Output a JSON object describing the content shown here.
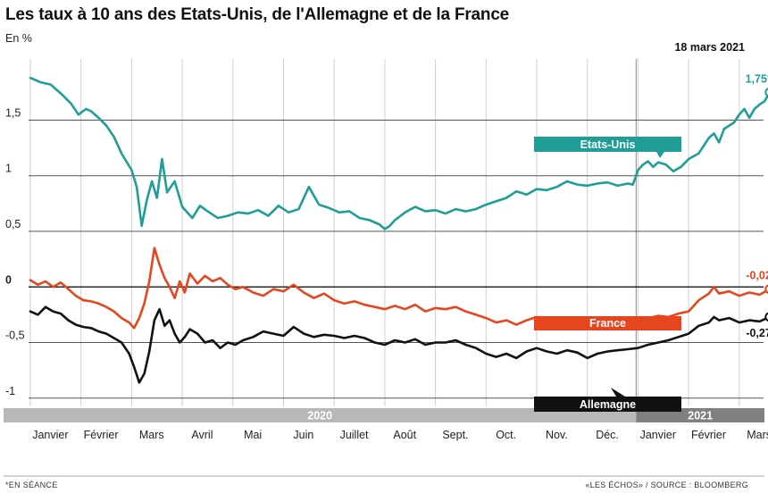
{
  "title": "Les taux à 10 ans des Etats-Unis, de l'Allemagne et de la France",
  "subtitle": "En %",
  "date_label": "18 mars 2021",
  "footer": {
    "left": "*EN SÉANCE",
    "right": "«LES ÉCHOS» / SOURCE : BLOOMBERG"
  },
  "colors": {
    "us": "#1f9e98",
    "france": "#e5461e",
    "germany": "#111111",
    "grid": "#555555",
    "year_bar": "#b8b8b8",
    "year_bar_2021": "#808080"
  },
  "chart_data": {
    "type": "line",
    "ylim": [
      -1.05,
      2.05
    ],
    "y_ticks": [
      {
        "value": 1.5,
        "label": "1,5"
      },
      {
        "value": 1,
        "label": "1"
      },
      {
        "value": 0.5,
        "label": "0,5"
      },
      {
        "value": 0,
        "label": "0"
      },
      {
        "value": -0.5,
        "label": "-0,5"
      },
      {
        "value": -1,
        "label": "-1"
      }
    ],
    "x_labels": [
      "Janvier",
      "Février",
      "Mars",
      "Avril",
      "Mai",
      "Juin",
      "Juillet",
      "Août",
      "Sept.",
      "Oct.",
      "Nov.",
      "Déc.",
      "Janvier",
      "Février",
      "Mars"
    ],
    "years": [
      "2020",
      "2021"
    ],
    "x_range": [
      0,
      14.6
    ],
    "series": [
      {
        "name": "Etats-Unis",
        "end_label": "1,75*",
        "values": [
          [
            0,
            1.88
          ],
          [
            0.2,
            1.84
          ],
          [
            0.4,
            1.82
          ],
          [
            0.6,
            1.74
          ],
          [
            0.8,
            1.65
          ],
          [
            0.95,
            1.55
          ],
          [
            1.1,
            1.6
          ],
          [
            1.2,
            1.58
          ],
          [
            1.35,
            1.52
          ],
          [
            1.5,
            1.45
          ],
          [
            1.65,
            1.35
          ],
          [
            1.8,
            1.2
          ],
          [
            2.0,
            1.05
          ],
          [
            2.1,
            0.9
          ],
          [
            2.2,
            0.55
          ],
          [
            2.3,
            0.78
          ],
          [
            2.4,
            0.95
          ],
          [
            2.5,
            0.8
          ],
          [
            2.6,
            1.15
          ],
          [
            2.7,
            0.85
          ],
          [
            2.85,
            0.95
          ],
          [
            3.0,
            0.72
          ],
          [
            3.2,
            0.62
          ],
          [
            3.35,
            0.73
          ],
          [
            3.5,
            0.68
          ],
          [
            3.7,
            0.62
          ],
          [
            3.9,
            0.64
          ],
          [
            4.1,
            0.67
          ],
          [
            4.3,
            0.66
          ],
          [
            4.5,
            0.69
          ],
          [
            4.7,
            0.64
          ],
          [
            4.9,
            0.73
          ],
          [
            5.1,
            0.67
          ],
          [
            5.3,
            0.7
          ],
          [
            5.5,
            0.9
          ],
          [
            5.7,
            0.74
          ],
          [
            5.9,
            0.71
          ],
          [
            6.1,
            0.67
          ],
          [
            6.3,
            0.68
          ],
          [
            6.5,
            0.62
          ],
          [
            6.7,
            0.6
          ],
          [
            6.9,
            0.56
          ],
          [
            7.0,
            0.52
          ],
          [
            7.1,
            0.55
          ],
          [
            7.2,
            0.6
          ],
          [
            7.4,
            0.67
          ],
          [
            7.6,
            0.72
          ],
          [
            7.8,
            0.68
          ],
          [
            8.0,
            0.69
          ],
          [
            8.2,
            0.66
          ],
          [
            8.4,
            0.7
          ],
          [
            8.6,
            0.68
          ],
          [
            8.8,
            0.7
          ],
          [
            9.0,
            0.74
          ],
          [
            9.2,
            0.77
          ],
          [
            9.4,
            0.8
          ],
          [
            9.6,
            0.86
          ],
          [
            9.8,
            0.83
          ],
          [
            10.0,
            0.88
          ],
          [
            10.2,
            0.87
          ],
          [
            10.4,
            0.9
          ],
          [
            10.6,
            0.95
          ],
          [
            10.8,
            0.92
          ],
          [
            11.0,
            0.91
          ],
          [
            11.2,
            0.93
          ],
          [
            11.4,
            0.94
          ],
          [
            11.6,
            0.91
          ],
          [
            11.8,
            0.93
          ],
          [
            11.9,
            0.92
          ],
          [
            12.0,
            1.05
          ],
          [
            12.1,
            1.1
          ],
          [
            12.2,
            1.13
          ],
          [
            12.3,
            1.08
          ],
          [
            12.4,
            1.12
          ],
          [
            12.55,
            1.1
          ],
          [
            12.7,
            1.04
          ],
          [
            12.85,
            1.08
          ],
          [
            13.0,
            1.15
          ],
          [
            13.2,
            1.2
          ],
          [
            13.4,
            1.34
          ],
          [
            13.5,
            1.38
          ],
          [
            13.6,
            1.3
          ],
          [
            13.7,
            1.42
          ],
          [
            13.8,
            1.45
          ],
          [
            13.9,
            1.48
          ],
          [
            14.0,
            1.55
          ],
          [
            14.1,
            1.6
          ],
          [
            14.2,
            1.52
          ],
          [
            14.3,
            1.6
          ],
          [
            14.4,
            1.64
          ],
          [
            14.5,
            1.67
          ],
          [
            14.6,
            1.75
          ]
        ]
      },
      {
        "name": "France",
        "end_label": "-0,02",
        "values": [
          [
            0,
            0.06
          ],
          [
            0.15,
            0.02
          ],
          [
            0.3,
            0.05
          ],
          [
            0.45,
            0.0
          ],
          [
            0.6,
            0.04
          ],
          [
            0.75,
            -0.02
          ],
          [
            0.9,
            -0.08
          ],
          [
            1.05,
            -0.12
          ],
          [
            1.2,
            -0.13
          ],
          [
            1.35,
            -0.15
          ],
          [
            1.5,
            -0.18
          ],
          [
            1.65,
            -0.22
          ],
          [
            1.8,
            -0.28
          ],
          [
            1.95,
            -0.32
          ],
          [
            2.05,
            -0.37
          ],
          [
            2.15,
            -0.28
          ],
          [
            2.25,
            -0.15
          ],
          [
            2.35,
            0.05
          ],
          [
            2.45,
            0.35
          ],
          [
            2.55,
            0.2
          ],
          [
            2.65,
            0.08
          ],
          [
            2.75,
            0.0
          ],
          [
            2.85,
            -0.1
          ],
          [
            2.95,
            0.05
          ],
          [
            3.05,
            -0.05
          ],
          [
            3.15,
            0.12
          ],
          [
            3.3,
            0.03
          ],
          [
            3.45,
            0.1
          ],
          [
            3.6,
            0.05
          ],
          [
            3.75,
            0.08
          ],
          [
            3.9,
            0.02
          ],
          [
            4.05,
            -0.02
          ],
          [
            4.2,
            0.0
          ],
          [
            4.4,
            -0.05
          ],
          [
            4.6,
            -0.08
          ],
          [
            4.8,
            -0.02
          ],
          [
            5.0,
            -0.04
          ],
          [
            5.2,
            0.02
          ],
          [
            5.4,
            -0.05
          ],
          [
            5.6,
            -0.1
          ],
          [
            5.8,
            -0.06
          ],
          [
            6.0,
            -0.12
          ],
          [
            6.2,
            -0.15
          ],
          [
            6.4,
            -0.13
          ],
          [
            6.6,
            -0.16
          ],
          [
            6.8,
            -0.18
          ],
          [
            7.0,
            -0.2
          ],
          [
            7.2,
            -0.17
          ],
          [
            7.4,
            -0.2
          ],
          [
            7.6,
            -0.16
          ],
          [
            7.8,
            -0.22
          ],
          [
            8.0,
            -0.19
          ],
          [
            8.2,
            -0.2
          ],
          [
            8.4,
            -0.18
          ],
          [
            8.6,
            -0.22
          ],
          [
            8.8,
            -0.25
          ],
          [
            9.0,
            -0.28
          ],
          [
            9.2,
            -0.32
          ],
          [
            9.4,
            -0.3
          ],
          [
            9.6,
            -0.34
          ],
          [
            9.8,
            -0.3
          ],
          [
            10.0,
            -0.27
          ],
          [
            10.2,
            -0.3
          ],
          [
            10.4,
            -0.32
          ],
          [
            10.6,
            -0.29
          ],
          [
            10.8,
            -0.31
          ],
          [
            11.0,
            -0.33
          ],
          [
            11.2,
            -0.3
          ],
          [
            11.4,
            -0.32
          ],
          [
            11.6,
            -0.31
          ],
          [
            11.8,
            -0.33
          ],
          [
            12.0,
            -0.3
          ],
          [
            12.2,
            -0.28
          ],
          [
            12.4,
            -0.26
          ],
          [
            12.6,
            -0.27
          ],
          [
            12.8,
            -0.24
          ],
          [
            13.0,
            -0.22
          ],
          [
            13.2,
            -0.12
          ],
          [
            13.4,
            -0.06
          ],
          [
            13.5,
            0.0
          ],
          [
            13.6,
            -0.06
          ],
          [
            13.8,
            -0.04
          ],
          [
            14.0,
            -0.08
          ],
          [
            14.2,
            -0.05
          ],
          [
            14.4,
            -0.07
          ],
          [
            14.6,
            -0.02
          ]
        ]
      },
      {
        "name": "Allemagne",
        "end_label": "-0,27",
        "values": [
          [
            0,
            -0.22
          ],
          [
            0.15,
            -0.25
          ],
          [
            0.3,
            -0.18
          ],
          [
            0.45,
            -0.22
          ],
          [
            0.6,
            -0.24
          ],
          [
            0.75,
            -0.3
          ],
          [
            0.9,
            -0.34
          ],
          [
            1.05,
            -0.36
          ],
          [
            1.2,
            -0.37
          ],
          [
            1.35,
            -0.4
          ],
          [
            1.5,
            -0.42
          ],
          [
            1.65,
            -0.46
          ],
          [
            1.8,
            -0.5
          ],
          [
            1.95,
            -0.6
          ],
          [
            2.05,
            -0.72
          ],
          [
            2.15,
            -0.86
          ],
          [
            2.25,
            -0.78
          ],
          [
            2.35,
            -0.58
          ],
          [
            2.45,
            -0.3
          ],
          [
            2.55,
            -0.2
          ],
          [
            2.65,
            -0.35
          ],
          [
            2.75,
            -0.3
          ],
          [
            2.85,
            -0.42
          ],
          [
            2.95,
            -0.5
          ],
          [
            3.05,
            -0.45
          ],
          [
            3.15,
            -0.38
          ],
          [
            3.3,
            -0.42
          ],
          [
            3.45,
            -0.5
          ],
          [
            3.6,
            -0.48
          ],
          [
            3.75,
            -0.55
          ],
          [
            3.9,
            -0.5
          ],
          [
            4.05,
            -0.52
          ],
          [
            4.2,
            -0.48
          ],
          [
            4.4,
            -0.45
          ],
          [
            4.6,
            -0.4
          ],
          [
            4.8,
            -0.42
          ],
          [
            5.0,
            -0.44
          ],
          [
            5.2,
            -0.36
          ],
          [
            5.4,
            -0.42
          ],
          [
            5.6,
            -0.45
          ],
          [
            5.8,
            -0.43
          ],
          [
            6.0,
            -0.44
          ],
          [
            6.2,
            -0.46
          ],
          [
            6.4,
            -0.44
          ],
          [
            6.6,
            -0.46
          ],
          [
            6.8,
            -0.5
          ],
          [
            7.0,
            -0.52
          ],
          [
            7.2,
            -0.48
          ],
          [
            7.4,
            -0.5
          ],
          [
            7.6,
            -0.47
          ],
          [
            7.8,
            -0.52
          ],
          [
            8.0,
            -0.5
          ],
          [
            8.2,
            -0.5
          ],
          [
            8.4,
            -0.48
          ],
          [
            8.6,
            -0.52
          ],
          [
            8.8,
            -0.55
          ],
          [
            9.0,
            -0.6
          ],
          [
            9.2,
            -0.63
          ],
          [
            9.4,
            -0.6
          ],
          [
            9.6,
            -0.64
          ],
          [
            9.8,
            -0.58
          ],
          [
            10.0,
            -0.55
          ],
          [
            10.2,
            -0.58
          ],
          [
            10.4,
            -0.6
          ],
          [
            10.6,
            -0.57
          ],
          [
            10.8,
            -0.59
          ],
          [
            11.0,
            -0.64
          ],
          [
            11.2,
            -0.6
          ],
          [
            11.4,
            -0.58
          ],
          [
            11.6,
            -0.57
          ],
          [
            11.8,
            -0.56
          ],
          [
            12.0,
            -0.55
          ],
          [
            12.2,
            -0.52
          ],
          [
            12.4,
            -0.5
          ],
          [
            12.6,
            -0.48
          ],
          [
            12.8,
            -0.45
          ],
          [
            13.0,
            -0.42
          ],
          [
            13.2,
            -0.35
          ],
          [
            13.4,
            -0.32
          ],
          [
            13.5,
            -0.27
          ],
          [
            13.6,
            -0.3
          ],
          [
            13.8,
            -0.28
          ],
          [
            14.0,
            -0.32
          ],
          [
            14.2,
            -0.3
          ],
          [
            14.4,
            -0.31
          ],
          [
            14.6,
            -0.27
          ]
        ]
      }
    ],
    "legend": [
      {
        "name": "Etats-Unis",
        "placement": "upper-right"
      },
      {
        "name": "France",
        "placement": "middle-right"
      },
      {
        "name": "Allemagne",
        "placement": "lower-right"
      }
    ]
  }
}
